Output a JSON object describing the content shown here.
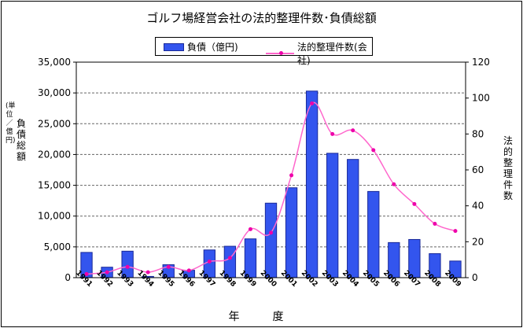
{
  "chart_data": {
    "type": "bar",
    "title": "ゴルフ場経営会社の法的整理件数･負債総額",
    "xlabel": "年　度",
    "ylabel_left": "負債総額",
    "ylabel_left_unit": "(単位／億円)",
    "ylabel_right": "法的整理件数",
    "categories": [
      "1991",
      "1992",
      "1993",
      "1994",
      "1995",
      "1996",
      "1997",
      "1998",
      "1999",
      "2000",
      "2001",
      "2002",
      "2003",
      "2004",
      "2005",
      "2006",
      "2007",
      "2008",
      "2009"
    ],
    "series": [
      {
        "name": "負債（億円)",
        "type": "bar",
        "axis": "left",
        "values": [
          4100,
          1700,
          4300,
          200,
          2100,
          1200,
          4500,
          5100,
          6300,
          12100,
          14600,
          30300,
          20200,
          19200,
          14000,
          5700,
          6200,
          3900,
          2700
        ]
      },
      {
        "name": "法的整理件数(会社)",
        "type": "line",
        "axis": "right",
        "values": [
          2,
          3,
          6,
          3,
          6,
          4,
          9,
          11,
          27,
          25,
          57,
          97,
          80,
          82,
          71,
          52,
          41,
          30,
          26
        ]
      }
    ],
    "ylim_left": [
      0,
      35000
    ],
    "yticks_left": [
      "0",
      "5,000",
      "10,000",
      "15,000",
      "20,000",
      "25,000",
      "30,000",
      "35,000"
    ],
    "ylim_right": [
      0,
      120
    ],
    "yticks_right": [
      "0",
      "20",
      "40",
      "60",
      "80",
      "100",
      "120"
    ],
    "grid": true,
    "legend_position": "top-center",
    "colors": {
      "bar_fill": "#3355ee",
      "bar_stroke": "#1a2a99",
      "line": "#ff66cc",
      "marker": "#ee00aa",
      "grid": "#666666"
    }
  }
}
